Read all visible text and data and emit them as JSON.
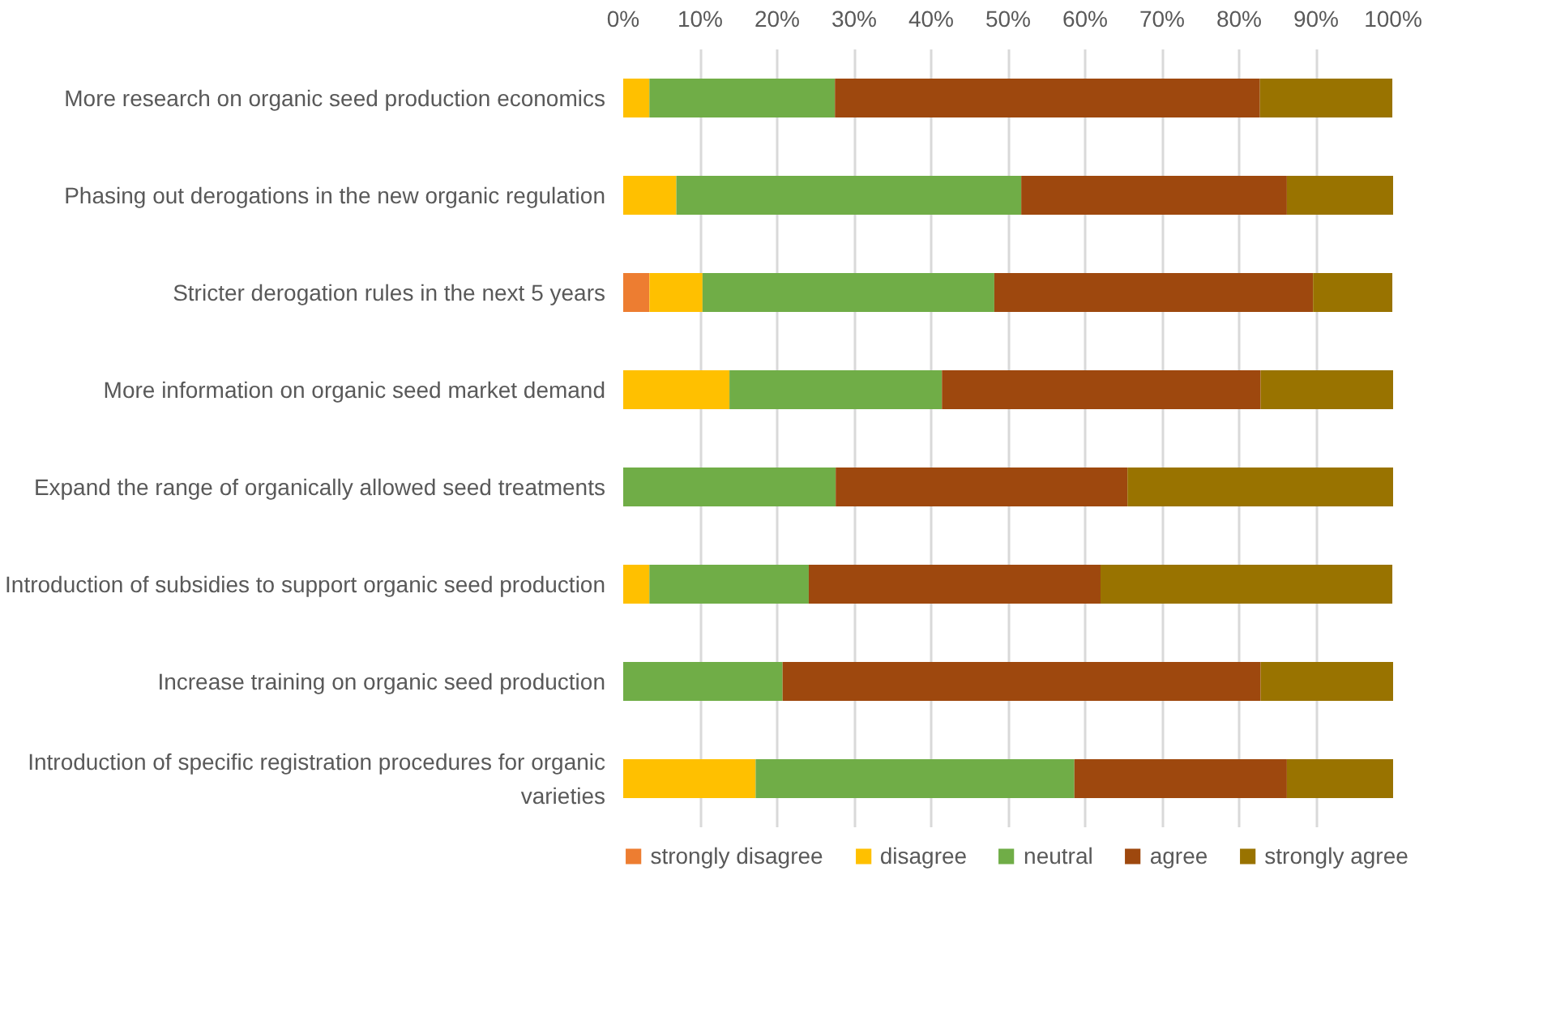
{
  "chart_data": {
    "type": "bar",
    "orientation": "horizontal",
    "stacked": true,
    "categories": [
      "More research on organic seed production economics",
      "Phasing out derogations in the new organic regulation",
      "Stricter derogation rules in the next 5 years",
      "More information on organic seed market demand",
      "Expand the range of organically allowed seed treatments",
      "Introduction of subsidies to support organic seed production",
      "Increase training on organic seed production",
      "Introduction of specific registration procedures for organic varieties"
    ],
    "series": [
      {
        "name": "strongly disagree",
        "color": "#ed7d31",
        "values": [
          0,
          0,
          3.4,
          0,
          0,
          0,
          0,
          0
        ]
      },
      {
        "name": "disagree",
        "color": "#ffc000",
        "values": [
          3.4,
          6.9,
          6.9,
          13.8,
          0,
          3.4,
          0,
          17.2
        ]
      },
      {
        "name": "neutral",
        "color": "#70ad47",
        "values": [
          24.1,
          44.8,
          37.9,
          27.6,
          27.6,
          20.7,
          20.7,
          41.4
        ]
      },
      {
        "name": "agree",
        "color": "#9e480e",
        "values": [
          55.2,
          34.5,
          41.4,
          41.4,
          37.9,
          37.9,
          62.1,
          27.6
        ]
      },
      {
        "name": "strongly agree",
        "color": "#997300",
        "values": [
          17.2,
          13.8,
          10.3,
          17.2,
          34.5,
          37.9,
          17.2,
          13.8
        ]
      }
    ],
    "xlim": [
      0,
      100
    ],
    "xticks": [
      {
        "value": 0,
        "label": "0%"
      },
      {
        "value": 10,
        "label": "10%"
      },
      {
        "value": 20,
        "label": "20%"
      },
      {
        "value": 30,
        "label": "30%"
      },
      {
        "value": 40,
        "label": "40%"
      },
      {
        "value": 50,
        "label": "50%"
      },
      {
        "value": 60,
        "label": "60%"
      },
      {
        "value": 70,
        "label": "70%"
      },
      {
        "value": 80,
        "label": "80%"
      },
      {
        "value": 90,
        "label": "90%"
      },
      {
        "value": 100,
        "label": "100%"
      }
    ],
    "grid": "x",
    "legend": "bottom"
  }
}
